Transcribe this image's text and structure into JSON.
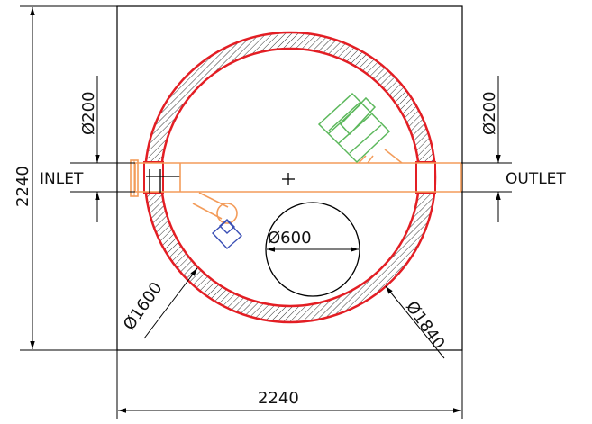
{
  "labels": {
    "inlet": "INLET",
    "outlet": "OUTLET"
  },
  "dimensions": {
    "height": "2240",
    "width": "2240",
    "inlet_pipe_diameter": "Ø200",
    "outlet_pipe_diameter": "Ø200",
    "manhole_diameter": "Ø600",
    "inner_diameter": "Ø1600",
    "outer_diameter": "Ø1840"
  },
  "colors": {
    "outline": "#000000",
    "tank_wall": "#e31e24",
    "pipe": "#f39c5a",
    "filter_unit": "#5cb85c",
    "valve": "#3a4fb5"
  }
}
